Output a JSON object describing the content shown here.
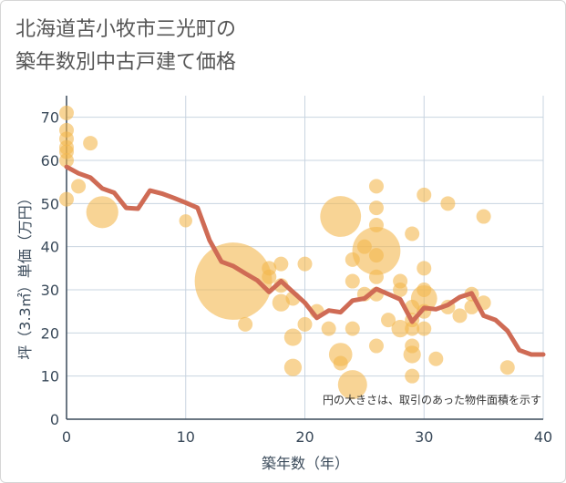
{
  "chart_data": {
    "type": "scatter",
    "title_lines": [
      "北海道苫小牧市三光町の",
      "築年数別中古戸建て価格"
    ],
    "xlabel": "築年数（年）",
    "ylabel": "坪（3.3㎡）単価（万円）",
    "xlim": [
      0,
      40
    ],
    "ylim": [
      0,
      75
    ],
    "x_ticks": [
      "0",
      "10",
      "20",
      "30",
      "40"
    ],
    "y_ticks": [
      "0",
      "10",
      "20",
      "30",
      "40",
      "50",
      "60",
      "70"
    ],
    "x_tick_values": [
      0,
      10,
      20,
      30,
      40
    ],
    "y_tick_values": [
      0,
      10,
      20,
      30,
      40,
      50,
      60,
      70
    ],
    "note": "円の大きさは、取引のあった物件面積を示す",
    "colors": {
      "bubble": "#f4b74f",
      "line": "#cf6b55",
      "grid": "#c8d4e0",
      "axis": "#3a4a5a"
    },
    "series": [
      {
        "name": "bubbles",
        "points": [
          {
            "x": 0,
            "y": 71,
            "s": 1.0
          },
          {
            "x": 0,
            "y": 67,
            "s": 1.0
          },
          {
            "x": 0,
            "y": 65,
            "s": 1.0
          },
          {
            "x": 0,
            "y": 63,
            "s": 1.0
          },
          {
            "x": 0,
            "y": 62,
            "s": 1.0
          },
          {
            "x": 0,
            "y": 60,
            "s": 1.0
          },
          {
            "x": 0,
            "y": 51,
            "s": 1.0
          },
          {
            "x": 1,
            "y": 54,
            "s": 1.0
          },
          {
            "x": 2,
            "y": 64,
            "s": 1.0
          },
          {
            "x": 3,
            "y": 48,
            "s": 2.2
          },
          {
            "x": 10,
            "y": 46,
            "s": 0.9
          },
          {
            "x": 14,
            "y": 32,
            "s": 5.3
          },
          {
            "x": 15,
            "y": 22,
            "s": 1.0
          },
          {
            "x": 17,
            "y": 35,
            "s": 1.0
          },
          {
            "x": 17,
            "y": 33,
            "s": 1.0
          },
          {
            "x": 18,
            "y": 36,
            "s": 1.0
          },
          {
            "x": 18,
            "y": 31,
            "s": 1.0
          },
          {
            "x": 18,
            "y": 27,
            "s": 1.2
          },
          {
            "x": 19,
            "y": 28,
            "s": 1.0
          },
          {
            "x": 19,
            "y": 19,
            "s": 1.2
          },
          {
            "x": 19,
            "y": 12,
            "s": 1.2
          },
          {
            "x": 20,
            "y": 36,
            "s": 1.0
          },
          {
            "x": 20,
            "y": 22,
            "s": 1.0
          },
          {
            "x": 21,
            "y": 25,
            "s": 1.0
          },
          {
            "x": 22,
            "y": 21,
            "s": 1.0
          },
          {
            "x": 23,
            "y": 47,
            "s": 2.8
          },
          {
            "x": 23,
            "y": 15,
            "s": 1.6
          },
          {
            "x": 23,
            "y": 13,
            "s": 1.0
          },
          {
            "x": 24,
            "y": 37,
            "s": 1.0
          },
          {
            "x": 24,
            "y": 32,
            "s": 1.0
          },
          {
            "x": 24,
            "y": 21,
            "s": 1.0
          },
          {
            "x": 24,
            "y": 8,
            "s": 2.0
          },
          {
            "x": 25,
            "y": 40,
            "s": 1.0
          },
          {
            "x": 25,
            "y": 29,
            "s": 1.0
          },
          {
            "x": 26,
            "y": 54,
            "s": 1.0
          },
          {
            "x": 26,
            "y": 49,
            "s": 1.0
          },
          {
            "x": 26,
            "y": 45,
            "s": 1.0
          },
          {
            "x": 26,
            "y": 39,
            "s": 3.3
          },
          {
            "x": 26,
            "y": 38,
            "s": 1.0
          },
          {
            "x": 26,
            "y": 33,
            "s": 1.0
          },
          {
            "x": 26,
            "y": 29,
            "s": 1.0
          },
          {
            "x": 26,
            "y": 17,
            "s": 1.0
          },
          {
            "x": 27,
            "y": 23,
            "s": 1.0
          },
          {
            "x": 28,
            "y": 32,
            "s": 1.0
          },
          {
            "x": 28,
            "y": 30,
            "s": 1.0
          },
          {
            "x": 28,
            "y": 21,
            "s": 1.2
          },
          {
            "x": 29,
            "y": 43,
            "s": 1.0
          },
          {
            "x": 29,
            "y": 26,
            "s": 1.0
          },
          {
            "x": 29,
            "y": 23,
            "s": 1.0
          },
          {
            "x": 29,
            "y": 21,
            "s": 1.0
          },
          {
            "x": 29,
            "y": 17,
            "s": 1.0
          },
          {
            "x": 29,
            "y": 15,
            "s": 1.2
          },
          {
            "x": 29,
            "y": 10,
            "s": 1.0
          },
          {
            "x": 30,
            "y": 52,
            "s": 1.0
          },
          {
            "x": 30,
            "y": 35,
            "s": 1.0
          },
          {
            "x": 30,
            "y": 30,
            "s": 1.0
          },
          {
            "x": 30,
            "y": 28,
            "s": 1.8
          },
          {
            "x": 30,
            "y": 25,
            "s": 1.0
          },
          {
            "x": 30,
            "y": 21,
            "s": 1.0
          },
          {
            "x": 31,
            "y": 14,
            "s": 1.0
          },
          {
            "x": 32,
            "y": 50,
            "s": 1.0
          },
          {
            "x": 32,
            "y": 26,
            "s": 1.0
          },
          {
            "x": 33,
            "y": 24,
            "s": 1.0
          },
          {
            "x": 34,
            "y": 29,
            "s": 1.0
          },
          {
            "x": 34,
            "y": 26,
            "s": 1.0
          },
          {
            "x": 35,
            "y": 47,
            "s": 1.0
          },
          {
            "x": 35,
            "y": 27,
            "s": 1.0
          },
          {
            "x": 37,
            "y": 12,
            "s": 1.0
          }
        ]
      },
      {
        "name": "trend",
        "points": [
          {
            "x": 0,
            "y": 58.5
          },
          {
            "x": 1,
            "y": 57
          },
          {
            "x": 2,
            "y": 56
          },
          {
            "x": 3,
            "y": 53.5
          },
          {
            "x": 4,
            "y": 52.5
          },
          {
            "x": 5,
            "y": 49
          },
          {
            "x": 6,
            "y": 48.8
          },
          {
            "x": 7,
            "y": 53
          },
          {
            "x": 8,
            "y": 52.3
          },
          {
            "x": 9,
            "y": 51.3
          },
          {
            "x": 10,
            "y": 50.2
          },
          {
            "x": 11,
            "y": 49
          },
          {
            "x": 12,
            "y": 41.5
          },
          {
            "x": 13,
            "y": 36.5
          },
          {
            "x": 14,
            "y": 35.5
          },
          {
            "x": 15,
            "y": 33.8
          },
          {
            "x": 16,
            "y": 32.2
          },
          {
            "x": 17,
            "y": 29.5
          },
          {
            "x": 18,
            "y": 32
          },
          {
            "x": 19,
            "y": 29.5
          },
          {
            "x": 20,
            "y": 27
          },
          {
            "x": 21,
            "y": 23.5
          },
          {
            "x": 22,
            "y": 25.2
          },
          {
            "x": 23,
            "y": 24.8
          },
          {
            "x": 24,
            "y": 27.5
          },
          {
            "x": 25,
            "y": 28
          },
          {
            "x": 26,
            "y": 30.2
          },
          {
            "x": 27,
            "y": 29
          },
          {
            "x": 28,
            "y": 27.8
          },
          {
            "x": 29,
            "y": 22.6
          },
          {
            "x": 30,
            "y": 25.8
          },
          {
            "x": 31,
            "y": 25.5
          },
          {
            "x": 32,
            "y": 26.5
          },
          {
            "x": 33,
            "y": 28.3
          },
          {
            "x": 34,
            "y": 29.2
          },
          {
            "x": 35,
            "y": 24
          },
          {
            "x": 36,
            "y": 23
          },
          {
            "x": 37,
            "y": 20.5
          },
          {
            "x": 38,
            "y": 16
          },
          {
            "x": 39,
            "y": 15
          },
          {
            "x": 40,
            "y": 15
          }
        ]
      }
    ]
  }
}
